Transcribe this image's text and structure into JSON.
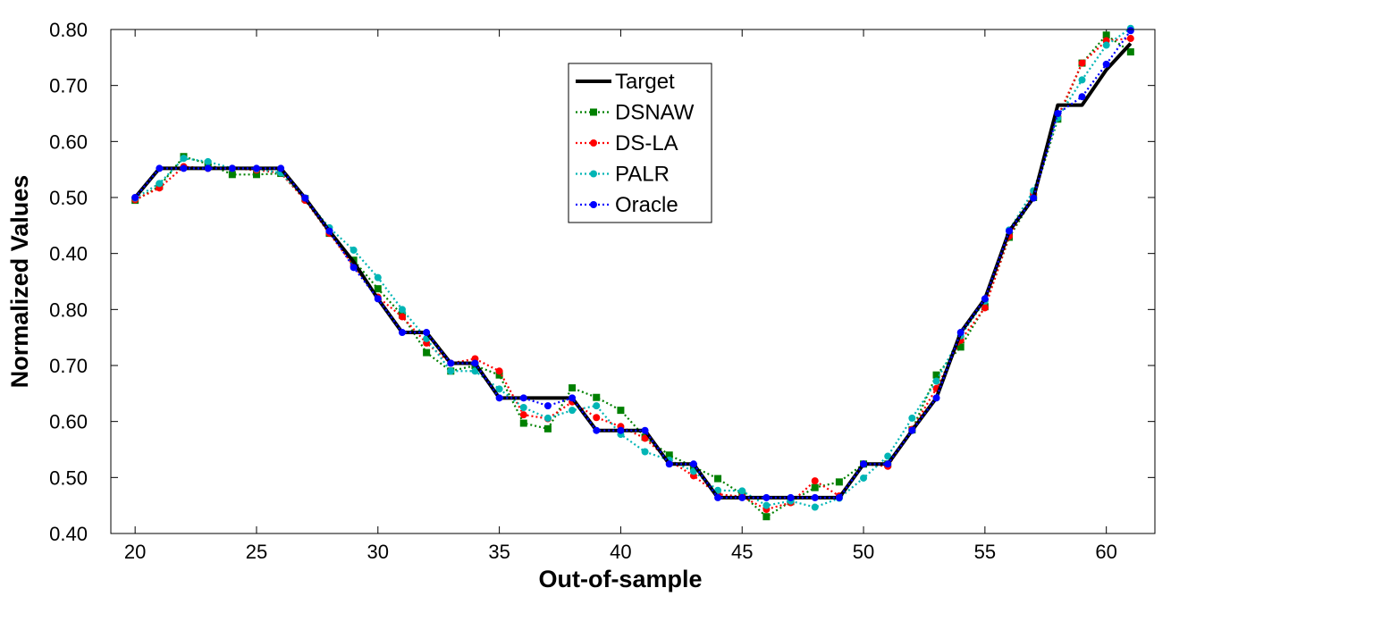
{
  "chart_data": {
    "type": "line",
    "title": "",
    "xlabel": "Out-of-sample",
    "ylabel": "Normalized Values",
    "xlim": [
      19,
      62
    ],
    "x_ticks": [
      20,
      25,
      30,
      35,
      40,
      45,
      50,
      55,
      60
    ],
    "y_ticks": [
      0,
      1,
      2,
      3,
      4,
      5,
      6,
      7,
      8,
      9
    ],
    "y_tick_labels": [
      "0.40",
      "0.50",
      "0.60",
      "0.70",
      "0.80",
      "0.40",
      "0.50",
      "0.60",
      "0.70",
      "0.80"
    ],
    "ylim": [
      0,
      9
    ],
    "grid": false,
    "legend_position": "top-center",
    "x": [
      20,
      21,
      22,
      23,
      24,
      25,
      26,
      27,
      28,
      29,
      30,
      31,
      32,
      33,
      34,
      35,
      36,
      37,
      38,
      39,
      40,
      41,
      42,
      43,
      44,
      45,
      46,
      47,
      48,
      49,
      50,
      51,
      52,
      53,
      54,
      55,
      56,
      57,
      58,
      59,
      60,
      61
    ],
    "series": [
      {
        "name": "Target",
        "color": "#000000",
        "style": "solid",
        "marker": "none",
        "values": [
          6.0,
          6.52,
          6.52,
          6.52,
          6.52,
          6.52,
          6.52,
          5.99,
          5.4,
          4.85,
          4.19,
          3.59,
          3.59,
          3.04,
          3.04,
          2.42,
          2.42,
          2.42,
          2.42,
          1.84,
          1.84,
          1.84,
          1.24,
          1.24,
          0.64,
          0.64,
          0.64,
          0.64,
          0.64,
          0.64,
          1.24,
          1.24,
          1.84,
          2.42,
          3.59,
          4.19,
          5.4,
          5.99,
          7.65,
          7.65,
          8.28,
          8.75
        ]
      },
      {
        "name": "DSNAW",
        "color": "#008000",
        "style": "dotted",
        "marker": "square",
        "values": [
          5.95,
          6.2,
          6.73,
          6.6,
          6.41,
          6.41,
          6.43,
          5.98,
          5.36,
          4.88,
          4.37,
          3.9,
          3.23,
          2.9,
          3.0,
          2.83,
          1.97,
          1.87,
          2.6,
          2.43,
          2.2,
          1.72,
          1.4,
          1.19,
          0.98,
          0.7,
          0.3,
          0.57,
          0.82,
          0.92,
          1.24,
          1.24,
          1.85,
          2.83,
          3.33,
          4.05,
          5.29,
          6.0,
          7.4,
          8.4,
          8.9,
          8.6
        ]
      },
      {
        "name": "DS-LA",
        "color": "#ff0000",
        "style": "dotted",
        "marker": "circle",
        "values": [
          5.96,
          6.17,
          6.55,
          6.52,
          6.52,
          6.49,
          6.44,
          5.95,
          5.36,
          4.78,
          4.22,
          3.87,
          3.4,
          3.04,
          3.12,
          2.9,
          2.12,
          2.05,
          2.35,
          2.07,
          1.91,
          1.7,
          1.3,
          1.03,
          0.7,
          0.66,
          0.43,
          0.55,
          0.94,
          0.67,
          1.24,
          1.2,
          1.86,
          2.59,
          3.45,
          4.03,
          5.31,
          6.07,
          7.44,
          8.4,
          8.8,
          8.84
        ]
      },
      {
        "name": "PALR",
        "color": "#00b5b5",
        "style": "dotted",
        "marker": "circle",
        "values": [
          5.99,
          6.25,
          6.7,
          6.64,
          6.52,
          6.51,
          6.44,
          5.99,
          5.46,
          5.06,
          4.57,
          4.0,
          3.48,
          2.9,
          2.9,
          2.58,
          2.25,
          2.06,
          2.2,
          2.28,
          1.77,
          1.46,
          1.31,
          1.11,
          0.77,
          0.76,
          0.5,
          0.58,
          0.47,
          0.63,
          0.99,
          1.38,
          2.06,
          2.72,
          3.53,
          4.15,
          5.42,
          6.12,
          7.42,
          8.1,
          8.72,
          9.02
        ]
      },
      {
        "name": "Oracle",
        "color": "#0000ff",
        "style": "dotted",
        "marker": "circle",
        "values": [
          6.0,
          6.52,
          6.52,
          6.52,
          6.52,
          6.52,
          6.52,
          5.99,
          5.4,
          4.75,
          4.19,
          3.59,
          3.59,
          3.04,
          3.04,
          2.42,
          2.42,
          2.28,
          2.42,
          1.84,
          1.84,
          1.84,
          1.24,
          1.24,
          0.64,
          0.64,
          0.64,
          0.64,
          0.64,
          0.64,
          1.24,
          1.24,
          1.84,
          2.42,
          3.59,
          4.19,
          5.4,
          5.99,
          7.5,
          7.8,
          8.38,
          8.98
        ]
      }
    ]
  }
}
